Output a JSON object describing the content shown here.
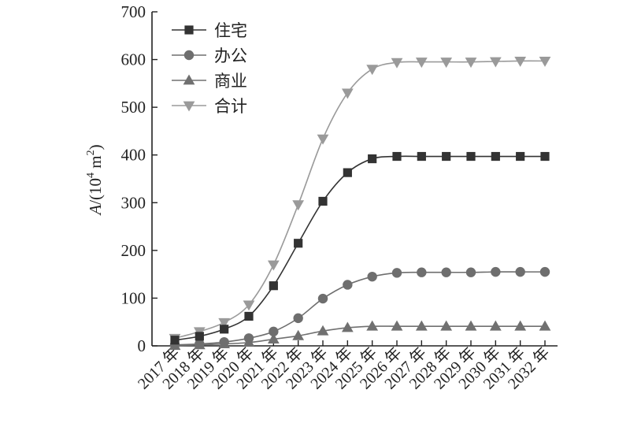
{
  "chart_data": {
    "type": "line",
    "x": [
      "2017 年",
      "2018 年",
      "2019 年",
      "2020 年",
      "2021 年",
      "2022 年",
      "2023 年",
      "2024 年",
      "2025 年",
      "2026 年",
      "2027 年",
      "2028 年",
      "2029 年",
      "2030 年",
      "2031 年",
      "2032 年"
    ],
    "series": [
      {
        "name": "住宅",
        "marker": "square",
        "color": "#333333",
        "values": [
          12,
          20,
          35,
          62,
          126,
          215,
          303,
          363,
          392,
          397,
          397,
          397,
          397,
          397,
          397,
          397
        ]
      },
      {
        "name": "办公",
        "marker": "circle",
        "color": "#6e6e6e",
        "values": [
          2,
          4,
          8,
          16,
          30,
          58,
          99,
          128,
          145,
          153,
          154,
          154,
          154,
          155,
          155,
          155
        ]
      },
      {
        "name": "商业",
        "marker": "triangle-up",
        "color": "#707070",
        "values": [
          0.5,
          2,
          4,
          7,
          14,
          21,
          31,
          38,
          41,
          41,
          41,
          41,
          41,
          41,
          41,
          41
        ]
      },
      {
        "name": "合计",
        "marker": "triangle-down",
        "color": "#9a9a9a",
        "values": [
          16,
          30,
          49,
          86,
          170,
          296,
          434,
          530,
          580,
          594,
          595,
          595,
          595,
          596,
          597,
          597
        ]
      }
    ],
    "ylabel_italic": "A",
    "ylabel_rest": "/(10",
    "ylabel_sup1": "4",
    "ylabel_mid": " m",
    "ylabel_sup2": "2",
    "ylabel_end": ")",
    "ylim": [
      0,
      700
    ],
    "yticks": [
      0,
      100,
      200,
      300,
      400,
      500,
      600,
      700
    ],
    "grid": false,
    "legend_position": "top-left"
  }
}
